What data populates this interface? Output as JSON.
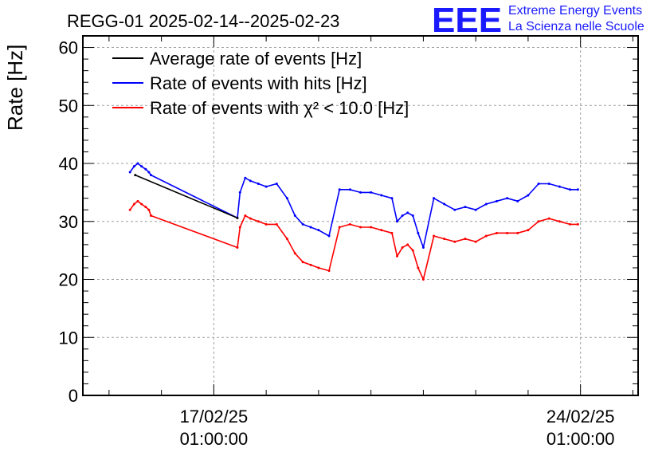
{
  "chart_data": {
    "type": "line",
    "title": "REGG-01 2025-02-14--2025-02-23",
    "ylabel": "Rate [Hz]",
    "xlabel": "",
    "ylim": [
      0,
      62
    ],
    "yticks": [
      0,
      10,
      20,
      30,
      40,
      50,
      60
    ],
    "xlim": [
      -2.5,
      8.1
    ],
    "xticks": [
      {
        "pos": 0,
        "date": "17/02/25",
        "time": "01:00:00"
      },
      {
        "pos": 7,
        "date": "24/02/25",
        "time": "01:00:00"
      }
    ],
    "x_units": "days since 17/02/25 01:00:00",
    "grid": true,
    "legend_position": "top-left",
    "series": [
      {
        "name": "Average rate of events [Hz]",
        "color": "#000000",
        "x": [
          -1.5,
          0.45
        ],
        "y": [
          38.0,
          30.6
        ]
      },
      {
        "name": "Rate of events with hits [Hz]",
        "color": "#0000ff",
        "x": [
          -1.6,
          -1.52,
          -1.45,
          -1.38,
          -1.3,
          -1.24,
          -1.2,
          0.45,
          0.5,
          0.6,
          0.7,
          0.85,
          1.0,
          1.2,
          1.4,
          1.55,
          1.7,
          1.85,
          2.0,
          2.2,
          2.4,
          2.6,
          2.8,
          3.0,
          3.2,
          3.4,
          3.5,
          3.6,
          3.7,
          3.8,
          3.9,
          4.0,
          4.2,
          4.4,
          4.6,
          4.8,
          5.0,
          5.2,
          5.4,
          5.6,
          5.8,
          6.0,
          6.2,
          6.4,
          6.6,
          6.8,
          6.95
        ],
        "y": [
          38.5,
          39.5,
          40.0,
          39.5,
          39.0,
          38.5,
          38.0,
          30.6,
          35.0,
          37.5,
          37.0,
          36.5,
          36.0,
          36.5,
          34.0,
          31.0,
          29.5,
          29.0,
          28.5,
          27.5,
          35.5,
          35.5,
          35.0,
          35.0,
          34.5,
          34.0,
          30.0,
          31.0,
          31.5,
          31.0,
          28.0,
          25.5,
          34.0,
          33.0,
          32.0,
          32.5,
          32.0,
          33.0,
          33.5,
          34.0,
          33.5,
          34.5,
          36.5,
          36.5,
          36.0,
          35.5,
          35.5
        ]
      },
      {
        "name": "Rate of events with χ² < 10.0 [Hz]",
        "color": "#ff0000",
        "x": [
          -1.6,
          -1.52,
          -1.45,
          -1.38,
          -1.3,
          -1.24,
          -1.2,
          0.45,
          0.5,
          0.6,
          0.7,
          0.85,
          1.0,
          1.2,
          1.4,
          1.55,
          1.7,
          1.85,
          2.0,
          2.2,
          2.4,
          2.6,
          2.8,
          3.0,
          3.2,
          3.4,
          3.5,
          3.6,
          3.7,
          3.8,
          3.9,
          4.0,
          4.2,
          4.4,
          4.6,
          4.8,
          5.0,
          5.2,
          5.4,
          5.6,
          5.8,
          6.0,
          6.2,
          6.4,
          6.6,
          6.8,
          6.95
        ],
        "y": [
          32.0,
          33.0,
          33.5,
          33.0,
          32.5,
          32.0,
          31.0,
          25.5,
          29.0,
          31.0,
          30.5,
          30.0,
          29.5,
          29.5,
          27.0,
          24.5,
          23.0,
          22.5,
          22.0,
          21.5,
          29.0,
          29.5,
          29.0,
          29.0,
          28.5,
          28.0,
          24.0,
          25.5,
          26.0,
          25.0,
          22.0,
          20.0,
          27.5,
          27.0,
          26.5,
          27.0,
          26.5,
          27.5,
          28.0,
          28.0,
          28.0,
          28.5,
          30.0,
          30.5,
          30.0,
          29.5,
          29.5
        ]
      }
    ]
  },
  "logo": {
    "letters": "EEE",
    "line1": "Extreme Energy Events",
    "line2": "La Scienza nelle Scuole",
    "color": "#1a1aff"
  }
}
